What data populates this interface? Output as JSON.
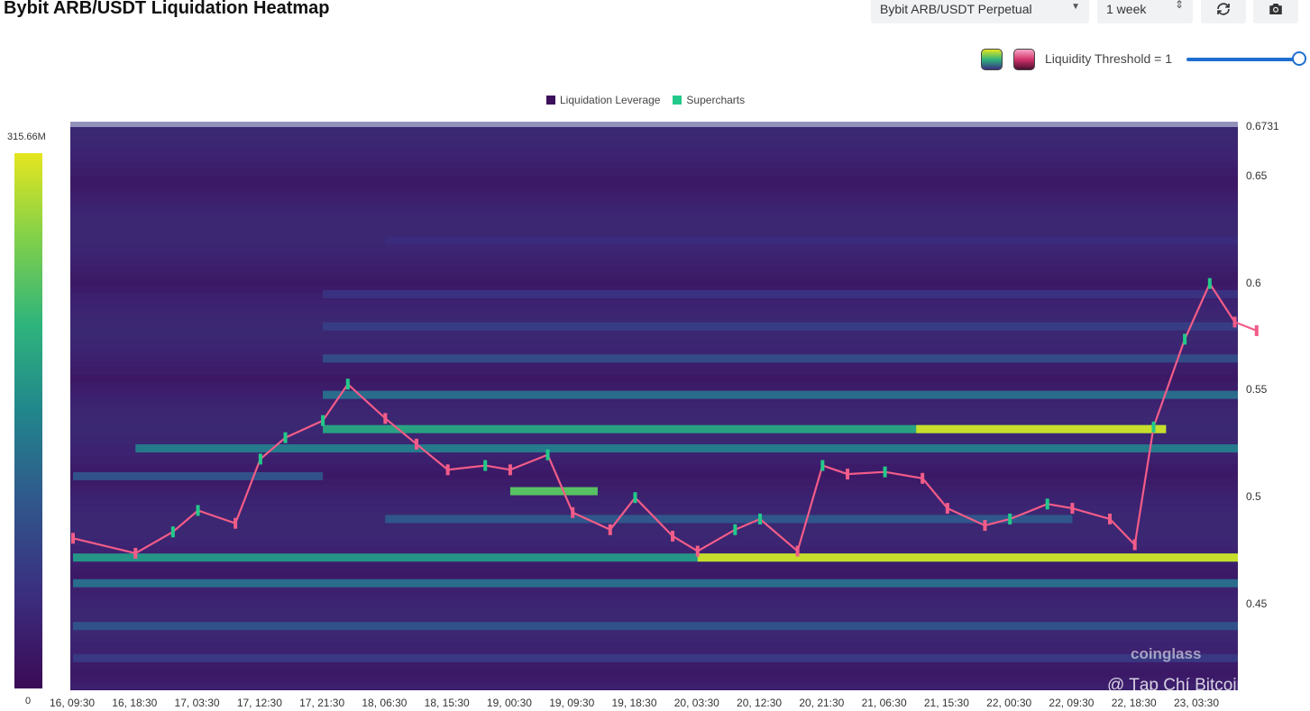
{
  "header": {
    "title": "Bybit ARB/USDT Liquidation Heatmap",
    "pair_select": "Bybit ARB/USDT Perpetual",
    "range_select": "1 week"
  },
  "controls": {
    "threshold_label": "Liquidity Threshold = 1",
    "threshold_value": 1,
    "refresh_icon": "refresh-icon",
    "camera_icon": "camera-icon"
  },
  "legend": {
    "items": [
      {
        "label": "Liquidation Leverage",
        "color": "#3d0f5c"
      },
      {
        "label": "Supercharts",
        "color": "#22c98a"
      }
    ]
  },
  "colorbar": {
    "max_label": "315.66M",
    "min_label": "0"
  },
  "watermark": {
    "brand": "coinglass",
    "source": "@ Tạp Chí Bitcoin"
  },
  "chart_data": {
    "type": "heatmap",
    "title": "Bybit ARB/USDT Liquidation Heatmap",
    "ylim": [
      0.41,
      0.6731
    ],
    "y_ticks": [
      "0.6731",
      "0.65",
      "0.6",
      "0.55",
      "0.5",
      "0.45"
    ],
    "x_ticks": [
      "16, 09:30",
      "16, 18:30",
      "17, 03:30",
      "17, 12:30",
      "17, 21:30",
      "18, 06:30",
      "18, 15:30",
      "19, 00:30",
      "19, 09:30",
      "19, 18:30",
      "20, 03:30",
      "20, 12:30",
      "20, 21:30",
      "21, 06:30",
      "21, 15:30",
      "22, 00:30",
      "22, 09:30",
      "22, 18:30",
      "23, 03:30"
    ],
    "color_scale": {
      "min": 0,
      "max_label": "315.66M",
      "colors": [
        "#3b0a55",
        "#3b2f80",
        "#2f5a8c",
        "#21878c",
        "#2fb47c",
        "#80d04a",
        "#e5e61f"
      ]
    },
    "price_series": {
      "name": "Supercharts",
      "x_index": [
        0,
        1,
        1.6,
        2,
        2.6,
        3,
        3.4,
        4,
        4.4,
        5,
        5.5,
        6,
        6.6,
        7,
        7.6,
        8,
        8.6,
        9,
        9.6,
        10,
        10.6,
        11,
        11.6,
        12,
        12.4,
        13,
        13.6,
        14,
        14.6,
        15,
        15.6,
        16,
        16.6,
        17,
        17.3,
        17.8,
        18.2,
        18.6,
        18.95
      ],
      "y": [
        0.481,
        0.474,
        0.484,
        0.494,
        0.488,
        0.518,
        0.528,
        0.536,
        0.553,
        0.537,
        0.525,
        0.513,
        0.515,
        0.513,
        0.52,
        0.493,
        0.485,
        0.5,
        0.482,
        0.475,
        0.485,
        0.49,
        0.475,
        0.515,
        0.511,
        0.512,
        0.509,
        0.495,
        0.487,
        0.49,
        0.497,
        0.495,
        0.49,
        0.478,
        0.533,
        0.574,
        0.6,
        0.582,
        0.578
      ]
    },
    "bands": [
      {
        "y": 0.472,
        "from": 0,
        "to": 19,
        "level": 0.55,
        "hot_from": 10,
        "hot_level": 0.95
      },
      {
        "y": 0.532,
        "from": 4,
        "to": 17.5,
        "level": 0.6,
        "hot_from": 13.5,
        "hot_level": 0.95
      },
      {
        "y": 0.503,
        "from": 7,
        "to": 8.4,
        "level": 0.75
      },
      {
        "y": 0.523,
        "from": 1,
        "to": 19,
        "level": 0.45
      },
      {
        "y": 0.548,
        "from": 4,
        "to": 19,
        "level": 0.4
      },
      {
        "y": 0.46,
        "from": 0,
        "to": 19,
        "level": 0.4
      },
      {
        "y": 0.44,
        "from": 0,
        "to": 19,
        "level": 0.3
      },
      {
        "y": 0.565,
        "from": 4,
        "to": 19,
        "level": 0.28
      },
      {
        "y": 0.58,
        "from": 4,
        "to": 19,
        "level": 0.22
      },
      {
        "y": 0.49,
        "from": 5,
        "to": 16,
        "level": 0.32
      },
      {
        "y": 0.51,
        "from": 0,
        "to": 4,
        "level": 0.3
      },
      {
        "y": 0.62,
        "from": 5,
        "to": 19,
        "level": 0.15
      },
      {
        "y": 0.595,
        "from": 4,
        "to": 19,
        "level": 0.18
      },
      {
        "y": 0.425,
        "from": 0,
        "to": 19,
        "level": 0.2
      }
    ]
  }
}
